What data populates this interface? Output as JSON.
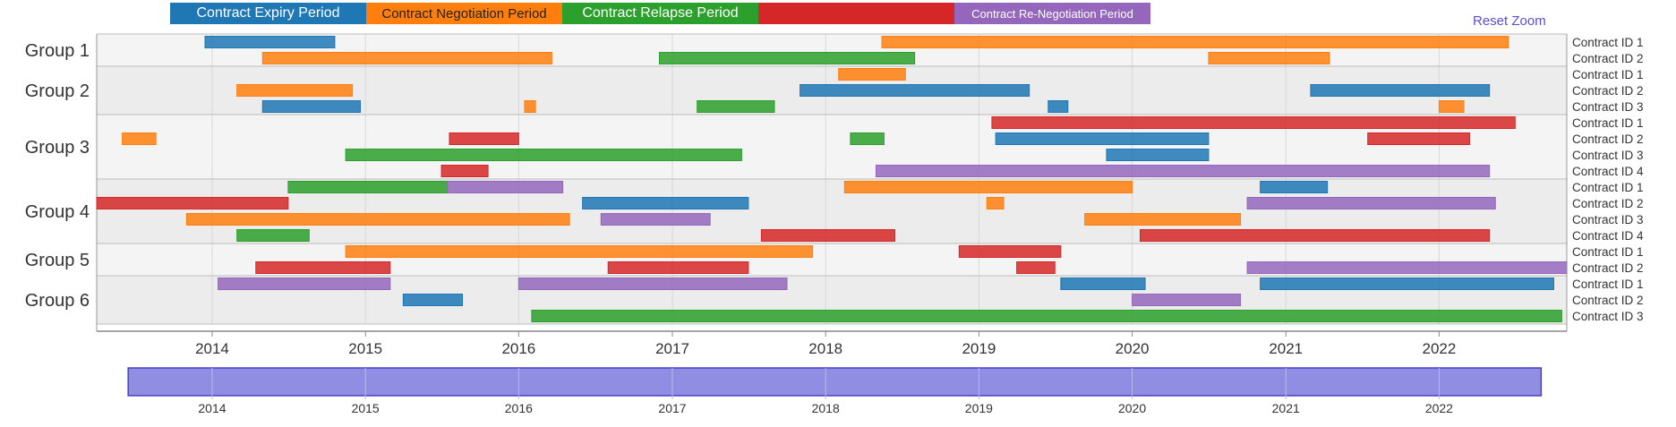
{
  "reset_zoom_label": "Reset Zoom",
  "legend": [
    {
      "label": "Contract Expiry Period",
      "color": "#1f77b4"
    },
    {
      "label": "Contract Negotiation Period",
      "color": "#ff7f0e"
    },
    {
      "label": "Contract Relapse Period",
      "color": "#2ca02c"
    },
    {
      "label": "",
      "color": "#d62728"
    },
    {
      "label": "Contract Re-Negotiation Period",
      "color": "#9467bd"
    }
  ],
  "chart_data": {
    "type": "timeline",
    "x_range": [
      "2013-04-01",
      "2022-11-01"
    ],
    "x_ticks": [
      "2014",
      "2015",
      "2016",
      "2017",
      "2018",
      "2019",
      "2020",
      "2021",
      "2022"
    ],
    "brush_range": [
      "2013-06-15",
      "2022-09-01"
    ],
    "brush_ticks": [
      "2014",
      "2015",
      "2016",
      "2017",
      "2018",
      "2019",
      "2020",
      "2021",
      "2022"
    ],
    "colors": {
      "expiry": "#1f77b4",
      "negotiation": "#ff7f0e",
      "relapse": "#2ca02c",
      "red": "#d62728",
      "renegotiation": "#9467bd"
    },
    "groups": [
      {
        "name": "Group 1",
        "rows": [
          {
            "label": "Contract ID 1",
            "bars": [
              {
                "type": "expiry",
                "start": "2013-12-15",
                "end": "2014-10-20"
              },
              {
                "type": "negotiation",
                "start": "2018-05-15",
                "end": "2022-06-15"
              }
            ]
          },
          {
            "label": "Contract ID 2",
            "bars": [
              {
                "type": "negotiation",
                "start": "2014-05-01",
                "end": "2016-03-20"
              },
              {
                "type": "relapse",
                "start": "2016-12-01",
                "end": "2018-08-01"
              },
              {
                "type": "negotiation",
                "start": "2020-07-01",
                "end": "2021-04-15"
              }
            ]
          }
        ]
      },
      {
        "name": "Group 2",
        "rows": [
          {
            "label": "Contract ID 1",
            "bars": [
              {
                "type": "negotiation",
                "start": "2018-02-01",
                "end": "2018-07-10"
              }
            ]
          },
          {
            "label": "Contract ID 2",
            "bars": [
              {
                "type": "negotiation",
                "start": "2014-03-01",
                "end": "2014-12-01"
              },
              {
                "type": "expiry",
                "start": "2017-11-01",
                "end": "2019-05-01"
              },
              {
                "type": "expiry",
                "start": "2021-03-01",
                "end": "2022-05-01"
              }
            ]
          },
          {
            "label": "Contract ID 3",
            "bars": [
              {
                "type": "expiry",
                "start": "2014-05-01",
                "end": "2014-12-20"
              },
              {
                "type": "negotiation",
                "start": "2016-01-15",
                "end": "2016-02-10"
              },
              {
                "type": "relapse",
                "start": "2017-03-01",
                "end": "2017-09-01"
              },
              {
                "type": "expiry",
                "start": "2019-06-15",
                "end": "2019-08-01"
              },
              {
                "type": "negotiation",
                "start": "2022-01-01",
                "end": "2022-03-01"
              }
            ]
          }
        ]
      },
      {
        "name": "Group 3",
        "rows": [
          {
            "label": "Contract ID 1",
            "bars": [
              {
                "type": "red",
                "start": "2019-02-01",
                "end": "2022-07-01"
              }
            ]
          },
          {
            "label": "Contract ID 2",
            "bars": [
              {
                "type": "negotiation",
                "start": "2013-06-01",
                "end": "2013-08-20"
              },
              {
                "type": "red",
                "start": "2015-07-20",
                "end": "2016-01-01"
              },
              {
                "type": "relapse",
                "start": "2018-03-01",
                "end": "2018-05-20"
              },
              {
                "type": "expiry",
                "start": "2019-02-10",
                "end": "2020-07-01"
              },
              {
                "type": "red",
                "start": "2021-07-15",
                "end": "2022-03-15"
              }
            ]
          },
          {
            "label": "Contract ID 3",
            "bars": [
              {
                "type": "relapse",
                "start": "2014-11-15",
                "end": "2017-06-15"
              },
              {
                "type": "expiry",
                "start": "2019-11-01",
                "end": "2020-07-01"
              }
            ]
          },
          {
            "label": "Contract ID 4",
            "bars": [
              {
                "type": "red",
                "start": "2015-07-01",
                "end": "2015-10-20"
              },
              {
                "type": "renegotiation",
                "start": "2018-05-01",
                "end": "2022-05-01"
              }
            ]
          }
        ]
      },
      {
        "name": "Group 4",
        "rows": [
          {
            "label": "Contract ID 1",
            "bars": [
              {
                "type": "relapse",
                "start": "2014-07-01",
                "end": "2015-07-15"
              },
              {
                "type": "renegotiation",
                "start": "2015-07-15",
                "end": "2016-04-15"
              },
              {
                "type": "negotiation",
                "start": "2018-02-15",
                "end": "2020-01-01"
              },
              {
                "type": "expiry",
                "start": "2020-11-01",
                "end": "2021-04-10"
              }
            ]
          },
          {
            "label": "Contract ID 2",
            "bars": [
              {
                "type": "red",
                "start": "2013-04-01",
                "end": "2014-07-01"
              },
              {
                "type": "expiry",
                "start": "2016-06-01",
                "end": "2017-07-01"
              },
              {
                "type": "negotiation",
                "start": "2019-01-20",
                "end": "2019-03-01"
              },
              {
                "type": "renegotiation",
                "start": "2020-10-01",
                "end": "2022-05-15"
              }
            ]
          },
          {
            "label": "Contract ID 3",
            "bars": [
              {
                "type": "negotiation",
                "start": "2013-11-01",
                "end": "2016-05-01"
              },
              {
                "type": "renegotiation",
                "start": "2016-07-15",
                "end": "2017-04-01"
              },
              {
                "type": "negotiation",
                "start": "2019-09-10",
                "end": "2020-09-15"
              }
            ]
          },
          {
            "label": "Contract ID 4",
            "bars": [
              {
                "type": "relapse",
                "start": "2014-03-01",
                "end": "2014-08-20"
              },
              {
                "type": "red",
                "start": "2017-08-01",
                "end": "2018-06-15"
              },
              {
                "type": "red",
                "start": "2020-01-20",
                "end": "2022-05-01"
              }
            ]
          }
        ]
      },
      {
        "name": "Group 5",
        "rows": [
          {
            "label": "Contract ID 1",
            "bars": [
              {
                "type": "negotiation",
                "start": "2014-11-15",
                "end": "2017-12-01"
              },
              {
                "type": "red",
                "start": "2018-11-15",
                "end": "2019-07-15"
              }
            ]
          },
          {
            "label": "Contract ID 2",
            "bars": [
              {
                "type": "red",
                "start": "2014-04-15",
                "end": "2015-03-01"
              },
              {
                "type": "red",
                "start": "2016-08-01",
                "end": "2017-07-01"
              },
              {
                "type": "red",
                "start": "2019-04-01",
                "end": "2019-07-01"
              },
              {
                "type": "renegotiation",
                "start": "2020-10-01",
                "end": "2022-11-01"
              }
            ]
          }
        ]
      },
      {
        "name": "Group 6",
        "rows": [
          {
            "label": "Contract ID 1",
            "bars": [
              {
                "type": "renegotiation",
                "start": "2014-01-15",
                "end": "2015-03-01"
              },
              {
                "type": "renegotiation",
                "start": "2016-01-01",
                "end": "2017-10-01"
              },
              {
                "type": "expiry",
                "start": "2019-07-15",
                "end": "2020-02-01"
              },
              {
                "type": "expiry",
                "start": "2020-11-01",
                "end": "2022-10-01"
              }
            ]
          },
          {
            "label": "Contract ID 2",
            "bars": [
              {
                "type": "expiry",
                "start": "2015-04-01",
                "end": "2015-08-20"
              },
              {
                "type": "renegotiation",
                "start": "2020-01-01",
                "end": "2020-09-15"
              }
            ]
          },
          {
            "label": "Contract ID 3",
            "bars": [
              {
                "type": "relapse",
                "start": "2016-02-01",
                "end": "2022-10-20"
              }
            ]
          }
        ]
      }
    ]
  }
}
